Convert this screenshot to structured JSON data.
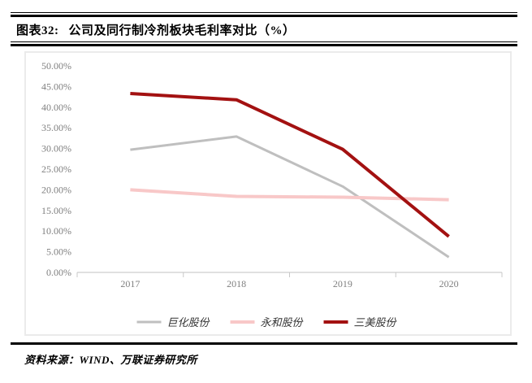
{
  "header": {
    "label": "图表32:",
    "title": "公司及同行制冷剂板块毛利率对比（%）"
  },
  "chart_data": {
    "type": "line",
    "title": "公司及同行制冷剂板块毛利率对比（%）",
    "xlabel": "",
    "ylabel": "",
    "categories": [
      "2017",
      "2018",
      "2019",
      "2020"
    ],
    "series": [
      {
        "name": "巨化股份",
        "color": "#bfbfbf",
        "values": [
          29.7,
          32.9,
          20.8,
          3.7
        ]
      },
      {
        "name": "永和股份",
        "color": "#f8c8c8",
        "values": [
          20.0,
          18.4,
          18.2,
          17.6
        ]
      },
      {
        "name": "三美股份",
        "color": "#a31111",
        "values": [
          43.3,
          41.8,
          29.8,
          8.7
        ]
      }
    ],
    "y_ticks": [
      "50.00%",
      "45.00%",
      "40.00%",
      "35.00%",
      "30.00%",
      "25.00%",
      "20.00%",
      "15.00%",
      "10.00%",
      "5.00%",
      "0.00%"
    ],
    "ylim": [
      0,
      50
    ],
    "grid": false,
    "legend_position": "bottom"
  },
  "footer": {
    "source": "资料来源：WIND、万联证券研究所"
  }
}
